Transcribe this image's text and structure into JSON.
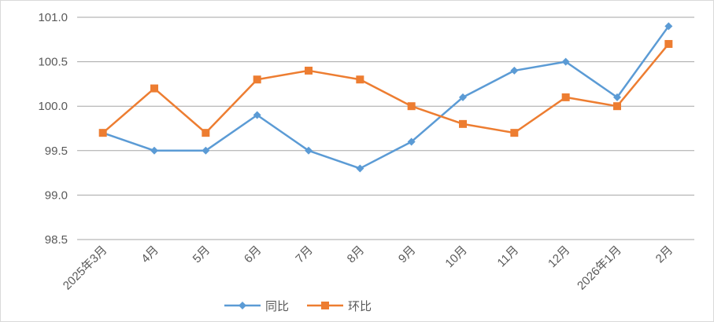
{
  "chart_data": {
    "type": "line",
    "categories": [
      "2025年3月",
      "4月",
      "5月",
      "6月",
      "7月",
      "8月",
      "9月",
      "10月",
      "11月",
      "12月",
      "2026年1月",
      "2月"
    ],
    "series": [
      {
        "name": "同比",
        "values": [
          99.7,
          99.5,
          99.5,
          99.9,
          99.5,
          99.3,
          99.6,
          100.1,
          100.4,
          100.5,
          100.1,
          100.9
        ],
        "color": "#5b9bd5",
        "marker": "diamond"
      },
      {
        "name": "环比",
        "values": [
          99.7,
          100.2,
          99.7,
          100.3,
          100.4,
          100.3,
          100.0,
          99.8,
          99.7,
          100.1,
          100.0,
          100.7
        ],
        "color": "#ed7d31",
        "marker": "square"
      }
    ],
    "ylim": [
      98.5,
      101.0
    ],
    "yticks": [
      "98.5",
      "99.0",
      "99.5",
      "100.0",
      "100.5",
      "101.0"
    ],
    "ytick_values": [
      98.5,
      99.0,
      99.5,
      100.0,
      100.5,
      101.0
    ],
    "grid": true,
    "legend_position": "bottom-left",
    "title": "",
    "xlabel": "",
    "ylabel": ""
  }
}
